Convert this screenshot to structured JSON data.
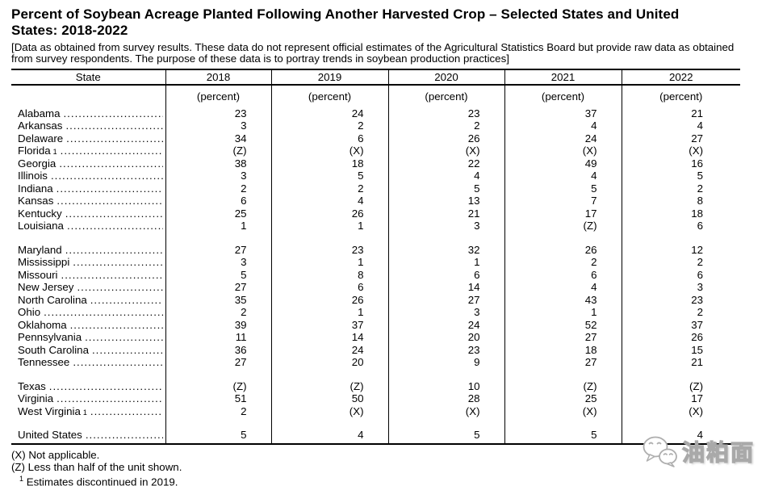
{
  "title": "Percent of Soybean Acreage Planted Following Another Harvested Crop – Selected States and United States: 2018-2022",
  "note": "[Data as obtained from survey results. These data do not represent official estimates of the Agricultural Statistics Board but provide raw data as obtained from survey respondents. The purpose of these data is to portray trends in soybean production practices]",
  "table": {
    "header": [
      "State",
      "2018",
      "2019",
      "2020",
      "2021",
      "2022"
    ],
    "unit_label": "(percent)",
    "groups": [
      {
        "rows": [
          {
            "state": "Alabama",
            "sup": "",
            "values": [
              "23",
              "24",
              "23",
              "37",
              "21"
            ]
          },
          {
            "state": "Arkansas",
            "sup": "",
            "values": [
              "3",
              "2",
              "2",
              "4",
              "4"
            ]
          },
          {
            "state": "Delaware",
            "sup": "",
            "values": [
              "34",
              "6",
              "26",
              "24",
              "27"
            ]
          },
          {
            "state": "Florida",
            "sup": "1",
            "values": [
              "(Z)",
              "(X)",
              "(X)",
              "(X)",
              "(X)"
            ]
          },
          {
            "state": "Georgia",
            "sup": "",
            "values": [
              "38",
              "18",
              "22",
              "49",
              "16"
            ]
          },
          {
            "state": "Illinois",
            "sup": "",
            "values": [
              "3",
              "5",
              "4",
              "4",
              "5"
            ]
          },
          {
            "state": "Indiana",
            "sup": "",
            "values": [
              "2",
              "2",
              "5",
              "5",
              "2"
            ]
          },
          {
            "state": "Kansas",
            "sup": "",
            "values": [
              "6",
              "4",
              "13",
              "7",
              "8"
            ]
          },
          {
            "state": "Kentucky",
            "sup": "",
            "values": [
              "25",
              "26",
              "21",
              "17",
              "18"
            ]
          },
          {
            "state": "Louisiana",
            "sup": "",
            "values": [
              "1",
              "1",
              "3",
              "(Z)",
              "6"
            ]
          }
        ]
      },
      {
        "rows": [
          {
            "state": "Maryland",
            "sup": "",
            "values": [
              "27",
              "23",
              "32",
              "26",
              "12"
            ]
          },
          {
            "state": "Mississippi",
            "sup": "",
            "values": [
              "3",
              "1",
              "1",
              "2",
              "2"
            ]
          },
          {
            "state": "Missouri",
            "sup": "",
            "values": [
              "5",
              "8",
              "6",
              "6",
              "6"
            ]
          },
          {
            "state": "New Jersey",
            "sup": "",
            "values": [
              "27",
              "6",
              "14",
              "4",
              "3"
            ]
          },
          {
            "state": "North Carolina",
            "sup": "",
            "values": [
              "35",
              "26",
              "27",
              "43",
              "23"
            ]
          },
          {
            "state": "Ohio",
            "sup": "",
            "values": [
              "2",
              "1",
              "3",
              "1",
              "2"
            ]
          },
          {
            "state": "Oklahoma",
            "sup": "",
            "values": [
              "39",
              "37",
              "24",
              "52",
              "37"
            ]
          },
          {
            "state": "Pennsylvania",
            "sup": "",
            "values": [
              "11",
              "14",
              "20",
              "27",
              "26"
            ]
          },
          {
            "state": "South Carolina",
            "sup": "",
            "values": [
              "36",
              "24",
              "23",
              "18",
              "15"
            ]
          },
          {
            "state": "Tennessee",
            "sup": "",
            "values": [
              "27",
              "20",
              "9",
              "27",
              "21"
            ]
          }
        ]
      },
      {
        "rows": [
          {
            "state": "Texas",
            "sup": "",
            "values": [
              "(Z)",
              "(Z)",
              "10",
              "(Z)",
              "(Z)"
            ]
          },
          {
            "state": "Virginia",
            "sup": "",
            "values": [
              "51",
              "50",
              "28",
              "25",
              "17"
            ]
          },
          {
            "state": "West Virginia",
            "sup": "1",
            "values": [
              "2",
              "(X)",
              "(X)",
              "(X)",
              "(X)"
            ]
          }
        ]
      },
      {
        "rows": [
          {
            "state": "United States",
            "sup": "",
            "values": [
              "5",
              "4",
              "5",
              "5",
              "4"
            ]
          }
        ]
      }
    ]
  },
  "footnotes": [
    {
      "marker": "(X)",
      "sup": false,
      "text": "Not applicable."
    },
    {
      "marker": "(Z)",
      "sup": false,
      "text": "Less than half of the unit shown."
    },
    {
      "marker": "1",
      "sup": true,
      "text": "Estimates discontinued in 2019."
    }
  ],
  "watermark": {
    "icon": "wechat-icon",
    "text": "油粕面",
    "color": "#a9a9a9"
  }
}
